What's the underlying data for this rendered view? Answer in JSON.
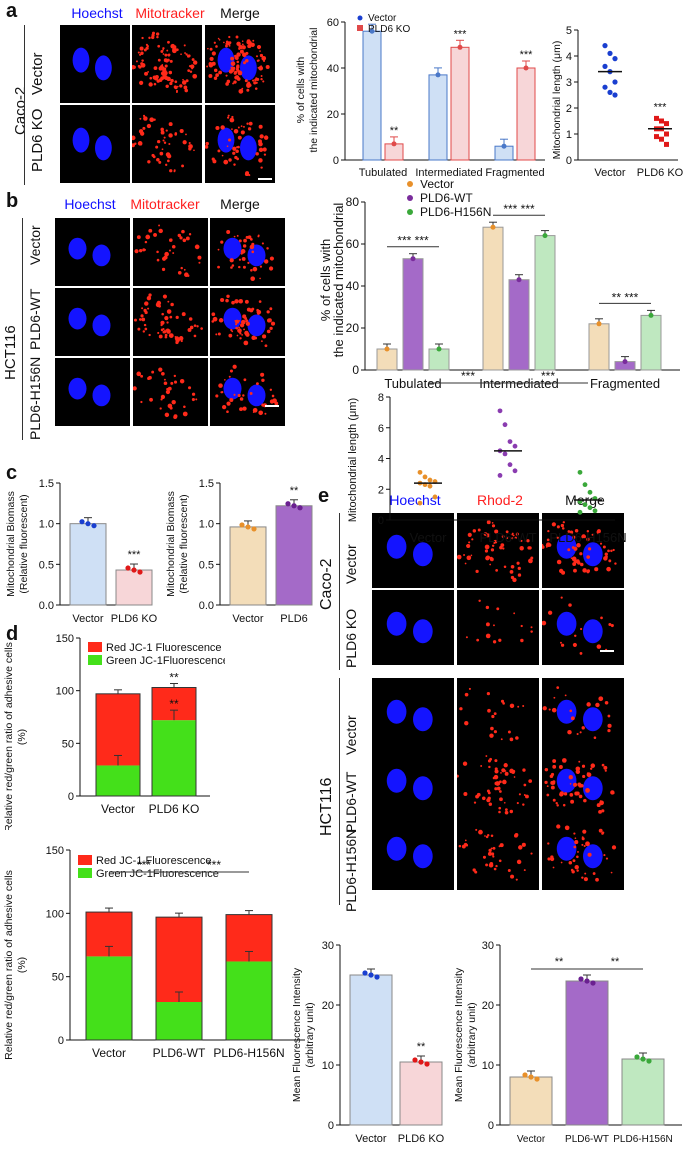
{
  "panel_labels": {
    "a": "a",
    "b": "b",
    "c": "c",
    "d": "d",
    "e": "e"
  },
  "colors": {
    "blue": "#1010ff",
    "red": "#ff2020",
    "vector_blue": "#cfe0f5",
    "ko_pink": "#f7d6d8",
    "tan": "#f3ddb9",
    "purple": "#a46ac8",
    "green_fill": "#bfe8c0"
  },
  "panel_a": {
    "group_label": "Caco-2",
    "headers": [
      "Hoechst",
      "Mitotracker",
      "Merge"
    ],
    "rows": [
      "Vector",
      "PLD6 KO"
    ]
  },
  "panel_b": {
    "group_label": "HCT116",
    "headers": [
      "Hoechst",
      "Mitotracker",
      "Merge"
    ],
    "rows": [
      "Vector",
      "PLD6-WT",
      "PLD6-H156N"
    ]
  },
  "panel_e": {
    "headers": [
      "Hoechst",
      "Rhod-2",
      "Merge"
    ],
    "group1": "Caco-2",
    "rows1": [
      "Vector",
      "PLD6 KO"
    ],
    "group2": "HCT116",
    "rows2": [
      "Vector",
      "PLD6-WT",
      "PLD6-H156N"
    ]
  },
  "chart_data": [
    {
      "id": "a_morph",
      "type": "bar",
      "ylabel": "% of cells with the indicated mitochondrial",
      "categories": [
        "Tubulated",
        "Intermediated",
        "Fragmented"
      ],
      "series": [
        {
          "name": "Vector",
          "values": [
            56,
            37,
            6
          ]
        },
        {
          "name": "PLD6 KO",
          "values": [
            7,
            49,
            40
          ]
        }
      ],
      "sig": [
        "**",
        "***",
        "***"
      ],
      "ylim": [
        0,
        60
      ],
      "yticks": [
        "0",
        "20",
        "40",
        "60"
      ]
    },
    {
      "id": "a_length",
      "type": "scatter",
      "ylabel": "Mitochondrial length (μm)",
      "categories": [
        "Vector",
        "PLD6 KO"
      ],
      "means": [
        3.4,
        1.2
      ],
      "sig": [
        "",
        "***"
      ],
      "ylim": [
        0,
        5
      ],
      "yticks": [
        "0",
        "1",
        "2",
        "3",
        "4",
        "5"
      ]
    },
    {
      "id": "b_morph",
      "type": "bar",
      "ylabel": "% of cells with the indicated mitochondrial",
      "categories": [
        "Tubulated",
        "Intermediated",
        "Fragmented"
      ],
      "series": [
        {
          "name": "Vector",
          "values": [
            10,
            68,
            22
          ]
        },
        {
          "name": "PLD6-WT",
          "values": [
            53,
            43,
            4
          ]
        },
        {
          "name": "PLD6-H156N",
          "values": [
            10,
            64,
            26
          ]
        }
      ],
      "sig": [
        "*** ***",
        "*** ***",
        "** ***"
      ],
      "ylim": [
        0,
        80
      ],
      "yticks": [
        "0",
        "20",
        "40",
        "60",
        "80"
      ]
    },
    {
      "id": "b_length",
      "type": "scatter",
      "ylabel": "Mitochondrial length (μm)",
      "categories": [
        "Vector",
        "PLD6-WT",
        "PLD6-H156N"
      ],
      "means": [
        2.4,
        4.5,
        1.3
      ],
      "sig": [
        "***",
        "***"
      ],
      "ylim": [
        0,
        8
      ],
      "yticks": [
        "0",
        "2",
        "4",
        "6",
        "8"
      ]
    },
    {
      "id": "c_ko",
      "type": "bar",
      "ylabel": "Mitochondrial Biomass (Relative fluorescent)",
      "categories": [
        "Vector",
        "PLD6 KO"
      ],
      "values": [
        1.0,
        0.43
      ],
      "sig": [
        "",
        "***"
      ],
      "ylim": [
        0,
        1.5
      ],
      "yticks": [
        "0.0",
        "0.5",
        "1.0",
        "1.5"
      ]
    },
    {
      "id": "c_oe",
      "type": "bar",
      "ylabel": "Mitochondrial Biomass (Relative fluorescent)",
      "categories": [
        "Vector",
        "PLD6"
      ],
      "values": [
        0.96,
        1.22
      ],
      "sig": [
        "",
        "**"
      ],
      "ylim": [
        0,
        1.5
      ],
      "yticks": [
        "0.0",
        "0.5",
        "1.0",
        "1.5"
      ]
    },
    {
      "id": "d_ko",
      "type": "bar",
      "ylabel": "Relative red/green ratio of adhesive cells (%)",
      "categories": [
        "Vector",
        "PLD6 KO"
      ],
      "series": [
        {
          "name": "Red JC-1 Fluorescence",
          "values": [
            68,
            31
          ]
        },
        {
          "name": "Green JC-1Fluorescence",
          "values": [
            29,
            72
          ]
        }
      ],
      "sig": [
        "",
        "** **"
      ],
      "ylim": [
        0,
        150
      ],
      "yticks": [
        "0",
        "50",
        "100",
        "150"
      ]
    },
    {
      "id": "d_oe",
      "type": "bar",
      "ylabel": "Relative red/green ratio of adhesive cells (%)",
      "categories": [
        "Vector",
        "PLD6-WT",
        "PLD6-H156N"
      ],
      "series": [
        {
          "name": "Red JC-1 Fluorescence",
          "values": [
            35,
            67,
            37
          ]
        },
        {
          "name": "Green JC-1Fluorescence",
          "values": [
            66,
            30,
            62
          ]
        }
      ],
      "sig": [
        "***",
        "***"
      ],
      "ylim": [
        0,
        150
      ],
      "yticks": [
        "0",
        "50",
        "100",
        "150"
      ]
    },
    {
      "id": "e_ko",
      "type": "bar",
      "ylabel": "Mean Fluorescence Intensity (arbitrary unit)",
      "categories": [
        "Vector",
        "PLD6 KO"
      ],
      "values": [
        25,
        10.5
      ],
      "sig": [
        "",
        "**"
      ],
      "ylim": [
        0,
        30
      ],
      "yticks": [
        "0",
        "10",
        "20",
        "30"
      ]
    },
    {
      "id": "e_oe",
      "type": "bar",
      "ylabel": "Mean Fluorescence Intensity (arbitrary unit)",
      "categories": [
        "Vector",
        "PLD6-WT",
        "PLD6-H156N"
      ],
      "values": [
        8,
        24,
        11
      ],
      "sig": [
        "**",
        "**"
      ],
      "ylim": [
        0,
        30
      ],
      "yticks": [
        "0",
        "10",
        "20",
        "30"
      ]
    }
  ]
}
